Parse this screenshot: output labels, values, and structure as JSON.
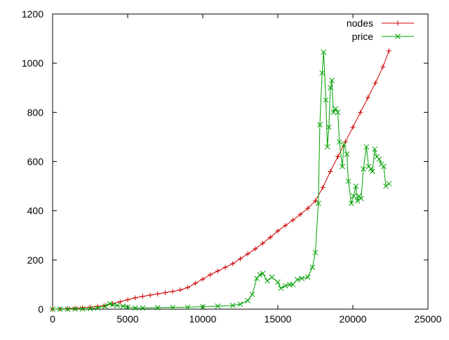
{
  "chart_data": {
    "type": "line",
    "title": "",
    "xlabel": "",
    "ylabel": "",
    "xlim": [
      0,
      25000
    ],
    "ylim": [
      0,
      1200
    ],
    "xticks": [
      0,
      5000,
      10000,
      15000,
      20000,
      25000
    ],
    "yticks": [
      0,
      200,
      400,
      600,
      800,
      1000,
      1200
    ],
    "xtick_labels": [
      "0",
      "5000",
      "10000",
      "15000",
      "20000",
      "25000"
    ],
    "ytick_labels": [
      "0",
      "200",
      "400",
      "600",
      "800",
      "1000",
      "1200"
    ],
    "grid": false,
    "legend_position": "top-right",
    "series": [
      {
        "name": "nodes",
        "color": "#cc0000",
        "marker": "plus",
        "x": [
          0,
          500,
          1000,
          1500,
          2000,
          2500,
          3000,
          3500,
          4000,
          4500,
          5000,
          5500,
          6000,
          6500,
          7000,
          7500,
          8000,
          8500,
          9000,
          9500,
          10000,
          10500,
          11000,
          11500,
          12000,
          12500,
          13000,
          13500,
          14000,
          14500,
          15000,
          15500,
          16000,
          16500,
          17000,
          17500,
          18000,
          18500,
          19000,
          19500,
          20000,
          20500,
          21000,
          21500,
          22000,
          22400
        ],
        "values": [
          0,
          1,
          2,
          4,
          6,
          8,
          11,
          15,
          22,
          30,
          38,
          46,
          52,
          57,
          62,
          67,
          72,
          78,
          88,
          105,
          122,
          140,
          155,
          170,
          185,
          205,
          225,
          245,
          268,
          292,
          318,
          340,
          362,
          385,
          410,
          440,
          495,
          560,
          620,
          680,
          740,
          800,
          860,
          920,
          985,
          1050
        ]
      },
      {
        "name": "price",
        "color": "#00a000",
        "marker": "x",
        "x": [
          0,
          500,
          1000,
          1500,
          2000,
          2500,
          3000,
          3500,
          3800,
          4000,
          4300,
          4700,
          5000,
          5500,
          6000,
          7000,
          8000,
          9000,
          10000,
          11000,
          12000,
          12500,
          13000,
          13300,
          13600,
          13800,
          14000,
          14300,
          14600,
          15000,
          15200,
          15500,
          15800,
          16000,
          16300,
          16600,
          17000,
          17300,
          17500,
          17700,
          17800,
          17950,
          18050,
          18200,
          18300,
          18400,
          18500,
          18600,
          18700,
          18850,
          19000,
          19100,
          19300,
          19400,
          19600,
          19700,
          19900,
          20050,
          20200,
          20300,
          20400,
          20550,
          20700,
          20900,
          21050,
          21200,
          21300,
          21450,
          21600,
          21750,
          21900,
          22050,
          22200,
          22400
        ],
        "values": [
          0,
          0,
          0,
          1,
          1,
          2,
          5,
          12,
          22,
          18,
          15,
          12,
          8,
          5,
          5,
          6,
          7,
          8,
          10,
          12,
          15,
          20,
          35,
          60,
          125,
          140,
          145,
          115,
          130,
          110,
          85,
          95,
          100,
          100,
          120,
          125,
          130,
          170,
          230,
          430,
          750,
          960,
          1045,
          850,
          660,
          740,
          900,
          930,
          800,
          815,
          800,
          680,
          580,
          670,
          630,
          520,
          430,
          460,
          500,
          440,
          460,
          450,
          570,
          660,
          580,
          570,
          560,
          650,
          620,
          610,
          590,
          580,
          500,
          510
        ]
      }
    ]
  }
}
